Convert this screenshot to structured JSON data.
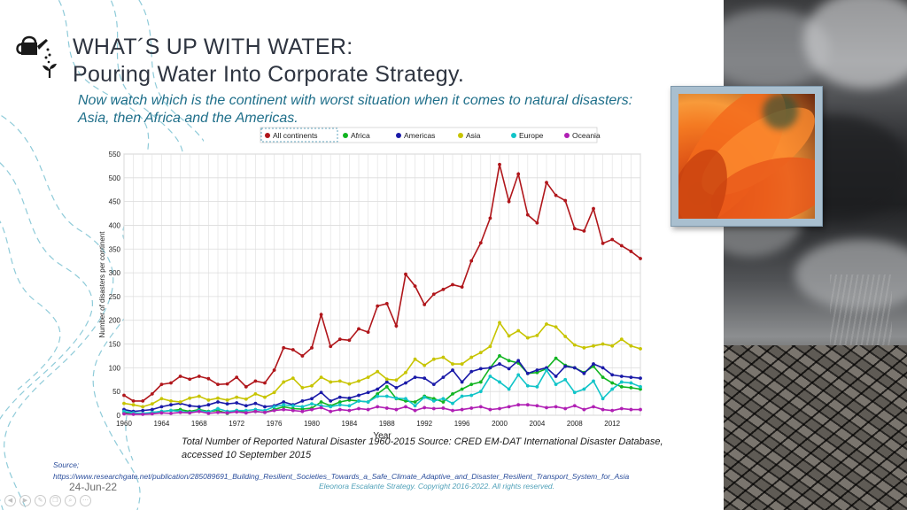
{
  "header": {
    "title_line1": "WHAT´S UP WITH WATER:",
    "title_line2": "Pouring Water Into Corporate Strategy.",
    "subtitle": "Now watch which is the continent with worst situation when it comes to natural disasters:  Asia, then Africa and the Americas."
  },
  "chart_data": {
    "type": "line",
    "xlabel": "Year",
    "ylabel": "Number of disasters per continent",
    "xlim": [
      1960,
      2015
    ],
    "ylim": [
      0,
      550
    ],
    "xticks": [
      "1960",
      "1964",
      "1968",
      "1972",
      "1976",
      "1980",
      "1984",
      "1988",
      "1992",
      "1996",
      "2000",
      "2004",
      "2008",
      "2012"
    ],
    "yticks": [
      "0",
      "50",
      "100",
      "150",
      "200",
      "250",
      "300",
      "350",
      "400",
      "450",
      "500",
      "550"
    ],
    "legend": [
      "All continents",
      "Africa",
      "Americas",
      "Asia",
      "Europe",
      "Oceania"
    ],
    "x": [
      1960,
      1961,
      1962,
      1963,
      1964,
      1965,
      1966,
      1967,
      1968,
      1969,
      1970,
      1971,
      1972,
      1973,
      1974,
      1975,
      1976,
      1977,
      1978,
      1979,
      1980,
      1981,
      1982,
      1983,
      1984,
      1985,
      1986,
      1987,
      1988,
      1989,
      1990,
      1991,
      1992,
      1993,
      1994,
      1995,
      1996,
      1997,
      1998,
      1999,
      2000,
      2001,
      2002,
      2003,
      2004,
      2005,
      2006,
      2007,
      2008,
      2009,
      2010,
      2011,
      2012,
      2013,
      2014,
      2015
    ],
    "series": [
      {
        "name": "All continents",
        "color": "#b0161b",
        "values": [
          42,
          30,
          30,
          45,
          65,
          68,
          82,
          76,
          82,
          77,
          65,
          66,
          80,
          60,
          72,
          68,
          95,
          142,
          138,
          125,
          142,
          212,
          145,
          160,
          158,
          182,
          175,
          230,
          235,
          188,
          297,
          272,
          233,
          255,
          265,
          275,
          270,
          325,
          363,
          415,
          528,
          450,
          508,
          422,
          405,
          490,
          463,
          452,
          393,
          388,
          435,
          362,
          370,
          357,
          345,
          330
        ]
      },
      {
        "name": "Africa",
        "color": "#11b421",
        "values": [
          5,
          4,
          3,
          6,
          8,
          10,
          12,
          8,
          12,
          8,
          10,
          4,
          10,
          6,
          8,
          6,
          12,
          18,
          14,
          13,
          15,
          28,
          20,
          28,
          32,
          30,
          28,
          45,
          60,
          35,
          30,
          28,
          40,
          35,
          28,
          45,
          55,
          65,
          70,
          100,
          125,
          115,
          110,
          88,
          90,
          98,
          120,
          105,
          100,
          90,
          103,
          80,
          68,
          60,
          58,
          55
        ]
      },
      {
        "name": "Americas",
        "color": "#1a1aa8",
        "values": [
          12,
          8,
          10,
          12,
          18,
          22,
          25,
          20,
          18,
          22,
          28,
          24,
          26,
          20,
          25,
          18,
          20,
          28,
          22,
          30,
          35,
          48,
          30,
          38,
          36,
          42,
          48,
          55,
          70,
          58,
          68,
          80,
          78,
          65,
          80,
          95,
          70,
          92,
          98,
          100,
          108,
          98,
          115,
          88,
          95,
          100,
          82,
          103,
          100,
          88,
          108,
          100,
          85,
          82,
          80,
          78
        ]
      },
      {
        "name": "Asia",
        "color": "#c7c400",
        "values": [
          25,
          22,
          18,
          24,
          35,
          30,
          28,
          36,
          40,
          32,
          36,
          32,
          38,
          34,
          45,
          38,
          48,
          70,
          78,
          58,
          62,
          80,
          70,
          72,
          66,
          72,
          80,
          92,
          76,
          74,
          90,
          118,
          105,
          118,
          122,
          108,
          108,
          122,
          132,
          145,
          195,
          167,
          178,
          163,
          168,
          192,
          186,
          166,
          148,
          142,
          146,
          150,
          146,
          160,
          146,
          140
        ]
      },
      {
        "name": "Europe",
        "color": "#10c4c8",
        "values": [
          8,
          5,
          4,
          6,
          8,
          10,
          8,
          6,
          10,
          7,
          14,
          8,
          10,
          10,
          12,
          10,
          18,
          22,
          20,
          18,
          24,
          20,
          18,
          22,
          20,
          30,
          28,
          40,
          40,
          36,
          35,
          20,
          38,
          30,
          35,
          25,
          40,
          42,
          50,
          82,
          70,
          55,
          85,
          62,
          60,
          95,
          65,
          75,
          48,
          55,
          72,
          35,
          55,
          70,
          68,
          60
        ]
      },
      {
        "name": "Oceania",
        "color": "#b01fb4",
        "values": [
          3,
          2,
          2,
          3,
          5,
          4,
          6,
          5,
          8,
          4,
          6,
          5,
          7,
          5,
          8,
          6,
          10,
          12,
          10,
          8,
          12,
          16,
          8,
          12,
          10,
          14,
          12,
          18,
          15,
          12,
          18,
          10,
          16,
          14,
          15,
          10,
          12,
          15,
          18,
          12,
          14,
          18,
          22,
          22,
          20,
          16,
          18,
          14,
          20,
          12,
          18,
          12,
          10,
          14,
          12,
          12
        ]
      }
    ]
  },
  "caption": "Total Number of Reported Natural Disaster 1960-2015 Source: CRED EM-DAT International Disaster Database, accessed 10 September 2015",
  "source": {
    "label": "Source;",
    "url": "https://www.researchgate.net/publication/285089691_Building_Resilient_Societies_Towards_a_Safe_Climate_Adaptive_and_Disaster_Resilient_Transport_System_for_Asia"
  },
  "footer": {
    "date": "24-Jun-22",
    "copyright": "Eleonora Escalante Strategy. Copyright 2016-2022. All rights reserved."
  },
  "nav_icons": [
    "previous-icon",
    "next-icon",
    "pen-icon",
    "copy-icon",
    "search-icon",
    "menu-icon"
  ]
}
